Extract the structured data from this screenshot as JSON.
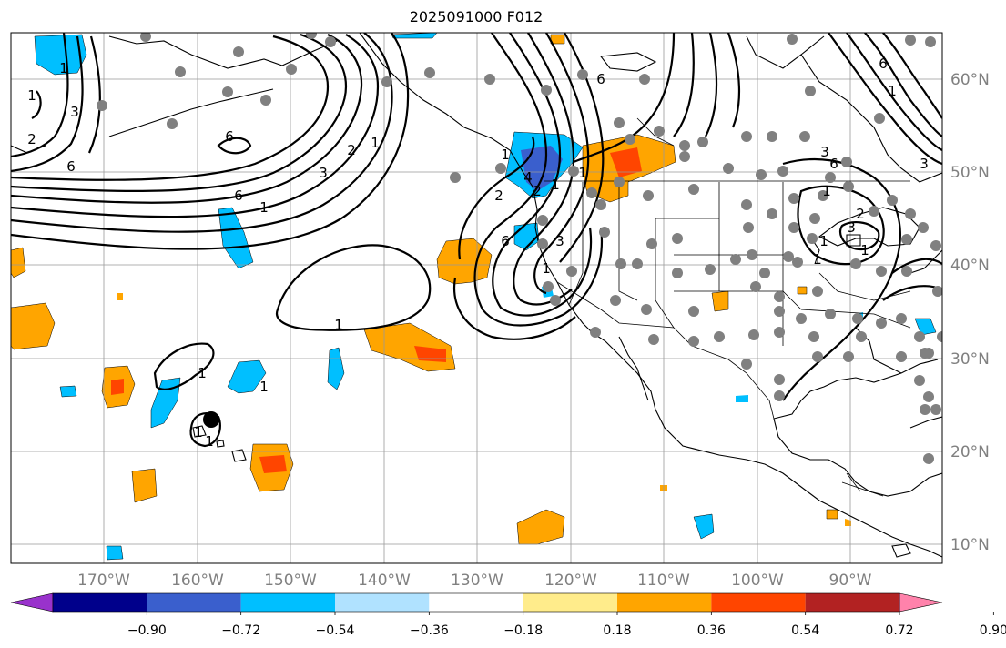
{
  "title": "2025091000 F012",
  "longitude_labels": [
    "170°W",
    "160°W",
    "150°W",
    "140°W",
    "130°W",
    "120°W",
    "110°W",
    "100°W",
    "90°W"
  ],
  "latitude_labels": [
    "60°N",
    "50°N",
    "40°N",
    "30°N",
    "20°N",
    "10°N"
  ],
  "colorbar": {
    "ticks": [
      "−0.90",
      "−0.72",
      "−0.54",
      "−0.36",
      "−0.18",
      "0.18",
      "0.36",
      "0.54",
      "0.72",
      "0.90"
    ],
    "colors": [
      "#9932cc",
      "#00008b",
      "#3a5fcd",
      "#00bfff",
      "#b0e2ff",
      "#ffffff",
      "#ffec8b",
      "#ffa500",
      "#ff4500",
      "#b22222",
      "#ff82ab"
    ]
  },
  "contour_labels": [
    "6",
    "3",
    "2",
    "1",
    "6",
    "1",
    "2",
    "1",
    "3",
    "6",
    "1",
    "4",
    "2",
    "6",
    "6",
    "1",
    "6",
    "3",
    "6",
    "3",
    "2",
    "1",
    "3",
    "1",
    "1",
    "1",
    "1",
    "1",
    "1",
    "1",
    "2",
    "1",
    "3",
    "1",
    "1",
    "1",
    "1"
  ],
  "colors": {
    "contour": "#000000",
    "station": "#808080",
    "grid": "#999999"
  }
}
